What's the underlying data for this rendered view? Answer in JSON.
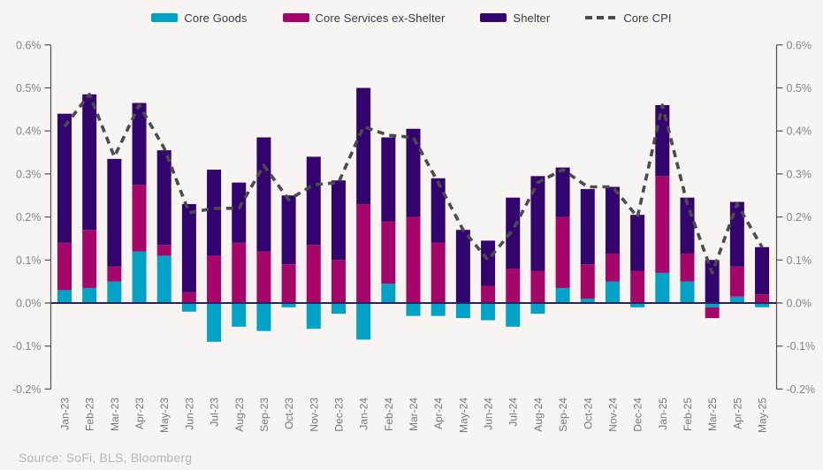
{
  "source": {
    "text": "Source: SoFi, BLS, Bloomberg"
  },
  "chart_data": {
    "type": "bar",
    "subtype": "stacked-bars-with-dashed-line-overlay",
    "title": "",
    "xlabel": "",
    "ylabel": "",
    "y_unit": "%",
    "grid": false,
    "legend_position": "top",
    "dual_y_axis": true,
    "ylim": [
      -0.2,
      0.6
    ],
    "ytick_values": [
      0.6,
      0.5,
      0.4,
      0.3,
      0.2,
      0.1,
      0.0,
      -0.1,
      -0.2
    ],
    "ytick_labels": [
      "0.6%",
      "0.5%",
      "0.4%",
      "0.3%",
      "0.2%",
      "0.1%",
      "0.0%",
      "-0.1%",
      "-0.2%"
    ],
    "categories": [
      "Jan-23",
      "Feb-23",
      "Mar-23",
      "Apr-23",
      "May-23",
      "Jun-23",
      "Jul-23",
      "Aug-23",
      "Sep-23",
      "Oct-23",
      "Nov-23",
      "Dec-23",
      "Jan-24",
      "Feb-24",
      "Mar-24",
      "Apr-24",
      "May-24",
      "Jun-24",
      "Jul-24",
      "Aug-24",
      "Sep-24",
      "Oct-24",
      "Nov-24",
      "Dec-24",
      "Jan-25",
      "Feb-25",
      "Mar-25",
      "Apr-25",
      "May-25"
    ],
    "series": [
      {
        "name": "Core Goods",
        "color": "#00a2c7",
        "values": [
          0.03,
          0.035,
          0.05,
          0.12,
          0.11,
          -0.02,
          -0.09,
          -0.055,
          -0.065,
          -0.01,
          -0.06,
          -0.025,
          -0.085,
          0.045,
          -0.03,
          -0.03,
          -0.035,
          -0.04,
          -0.055,
          -0.025,
          0.035,
          0.01,
          0.05,
          -0.01,
          0.07,
          0.05,
          -0.01,
          0.015,
          -0.01
        ]
      },
      {
        "name": "Core Services ex-Shelter",
        "color": "#a6066a",
        "values": [
          0.11,
          0.135,
          0.035,
          0.155,
          0.025,
          0.025,
          0.11,
          0.14,
          0.12,
          0.09,
          0.135,
          0.1,
          0.23,
          0.145,
          0.2,
          0.14,
          0.0,
          0.04,
          0.08,
          0.075,
          0.165,
          0.08,
          0.065,
          0.075,
          0.225,
          0.065,
          -0.025,
          0.07,
          0.02
        ]
      },
      {
        "name": "Shelter",
        "color": "#32046e",
        "values": [
          0.3,
          0.315,
          0.25,
          0.19,
          0.22,
          0.205,
          0.2,
          0.14,
          0.265,
          0.16,
          0.205,
          0.185,
          0.27,
          0.195,
          0.205,
          0.15,
          0.17,
          0.105,
          0.165,
          0.22,
          0.115,
          0.175,
          0.155,
          0.13,
          0.165,
          0.13,
          0.1,
          0.15,
          0.11
        ]
      }
    ],
    "line_series": {
      "name": "Core CPI",
      "color": "#4c4c4c",
      "style": "dashed",
      "values": [
        0.41,
        0.485,
        0.34,
        0.46,
        0.36,
        0.21,
        0.22,
        0.22,
        0.32,
        0.24,
        0.275,
        0.28,
        0.41,
        0.39,
        0.385,
        0.28,
        0.17,
        0.1,
        0.17,
        0.28,
        0.31,
        0.27,
        0.27,
        0.2,
        0.46,
        0.23,
        0.07,
        0.23,
        0.13
      ]
    },
    "colors": {
      "background": "#f7f4f1",
      "zero_line": "#29245f",
      "axis": "#55514c",
      "tick_label": "#8a8681",
      "x_label": "#7b7772",
      "legend_text": "#3c3946",
      "source_text": "#bab5ae"
    }
  }
}
